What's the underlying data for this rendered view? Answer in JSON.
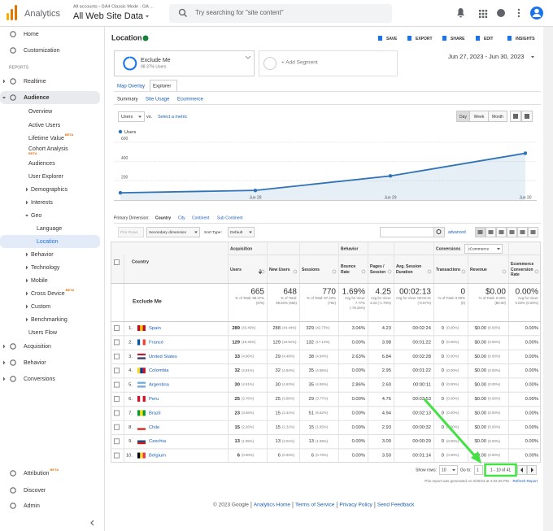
{
  "header": {
    "product": "Analytics",
    "breadcrumb": "All accounts › GA4 Classic Mode - GA ...",
    "property": "All Web Site Data",
    "search_placeholder": "Try searching for \"site content\""
  },
  "sidebar": {
    "top": [
      "Home",
      "Customization"
    ],
    "section": "REPORTS",
    "nav": [
      {
        "label": "Realtime"
      },
      {
        "label": "Audience"
      },
      {
        "label": "Overview"
      },
      {
        "label": "Active Users"
      },
      {
        "label": "Lifetime Value",
        "badge": "BETA"
      },
      {
        "label": "Cohort Analysis",
        "badge": "BETA"
      },
      {
        "label": "Audiences"
      },
      {
        "label": "User Explorer"
      },
      {
        "label": "Demographics"
      },
      {
        "label": "Interests"
      },
      {
        "label": "Geo"
      },
      {
        "label": "Language"
      },
      {
        "label": "Location"
      },
      {
        "label": "Behavior"
      },
      {
        "label": "Technology"
      },
      {
        "label": "Mobile"
      },
      {
        "label": "Cross Device",
        "badge": "BETA"
      },
      {
        "label": "Custom"
      },
      {
        "label": "Benchmarking"
      },
      {
        "label": "Users Flow"
      },
      {
        "label": "Acquisition"
      },
      {
        "label": "Behavior"
      },
      {
        "label": "Conversions"
      }
    ],
    "bottom": [
      {
        "label": "Attribution",
        "badge": "BETA"
      },
      {
        "label": "Discover"
      },
      {
        "label": "Admin"
      }
    ]
  },
  "report": {
    "title": "Location",
    "actions": [
      "SAVE",
      "EXPORT",
      "SHARE",
      "EDIT",
      "INSIGHTS"
    ],
    "segment": {
      "name": "Exclude Me",
      "share": "98.37% Users"
    },
    "add_segment": "+ Add Segment",
    "date_range": "Jun 27, 2023 - Jun 30, 2023",
    "tabs": [
      "Map Overlay",
      "Explorer"
    ],
    "subtabs": [
      "Summary",
      "Site Usage",
      "Ecommerce"
    ],
    "metric_select": "Users",
    "vs": "vs.",
    "select_metric": "Select a metric",
    "granularity": [
      "Day",
      "Week",
      "Month"
    ]
  },
  "chart_data": {
    "type": "line",
    "categories": [
      null,
      "Jun 28",
      "Jun 29",
      "Jun 30"
    ],
    "series": [
      {
        "name": "Users",
        "color": "#2f72b5",
        "values": [
          75,
          100,
          250,
          485
        ]
      }
    ],
    "ylim": [
      0,
      700
    ],
    "yticks": [
      200,
      400,
      600
    ],
    "grid": true
  },
  "dimensions": {
    "label": "Primary Dimension:",
    "options": [
      "Country",
      "City",
      "Continent",
      "Sub Continent"
    ]
  },
  "table_controls": {
    "plot_rows": "Plot Rows",
    "secondary": "Secondary dimension",
    "sort_label": "Sort Type:",
    "sort": "Default",
    "advanced": "advanced"
  },
  "table": {
    "groups": [
      "Acquisition",
      "Behavior",
      "Conversions"
    ],
    "conversion_select": "eCommerce",
    "columns": [
      "Country",
      "Users",
      "New Users",
      "Sessions",
      "Bounce Rate",
      "Pages / Session",
      "Avg. Session Duration",
      "Transactions",
      "Revenue",
      "Ecommerce Conversion Rate"
    ],
    "totals": {
      "label": "Exclude Me",
      "metrics": [
        {
          "value": "665",
          "note": "% of Total: 98.37% (676)"
        },
        {
          "value": "648",
          "note": "% of Total: 98.93% (655)"
        },
        {
          "value": "770",
          "note": "% of Total: 97.22% (792)"
        },
        {
          "value": "1.69%",
          "note": "Avg for View: 7.77% (-78.25%)"
        },
        {
          "value": "4.25",
          "note": "Avg for View: 4.33 (-1.79%)"
        },
        {
          "value": "00:02:13",
          "note": "Avg for View: 00:02:21 (-5.57%)"
        },
        {
          "value": "0",
          "note": "% of Total: 0.00% (0)"
        },
        {
          "value": "$0.00",
          "note": "% of Total: 0.00% ($0.00)"
        },
        {
          "value": "0.00%",
          "note": "Avg for View: 0.00% (0.00%)"
        }
      ]
    },
    "rows": [
      [
        "1.",
        "Spain",
        "289",
        "(43.46%)",
        "288",
        "(44.44%)",
        "329",
        "(42.73%)",
        "3.04%",
        "4.23",
        "00:02:24",
        "0",
        "(0.00%)",
        "$0.00",
        "(0.00%)",
        "0.00%"
      ],
      [
        "2.",
        "France",
        "129",
        "(19.40%)",
        "129",
        "(19.91%)",
        "132",
        "(17.14%)",
        "0.00%",
        "3.98",
        "00:01:22",
        "0",
        "(0.00%)",
        "$0.00",
        "(0.00%)",
        "0.00%"
      ],
      [
        "3.",
        "United States",
        "33",
        "(4.96%)",
        "29",
        "(4.48%)",
        "38",
        "(4.94%)",
        "2.63%",
        "6.84",
        "00:02:28",
        "0",
        "(0.00%)",
        "$0.00",
        "(0.00%)",
        "0.00%"
      ],
      [
        "4.",
        "Colombia",
        "32",
        "(4.81%)",
        "32",
        "(4.94%)",
        "35",
        "(4.55%)",
        "0.00%",
        "2.95",
        "00:01:22",
        "0",
        "(0.00%)",
        "$0.00",
        "(0.00%)",
        "0.00%"
      ],
      [
        "5.",
        "Argentina",
        "30",
        "(4.51%)",
        "30",
        "(4.63%)",
        "35",
        "(4.55%)",
        "2.86%",
        "2.60",
        "00:00:11",
        "0",
        "(0.00%)",
        "$0.00",
        "(0.00%)",
        "0.00%"
      ],
      [
        "6.",
        "Peru",
        "25",
        "(3.76%)",
        "25",
        "(3.86%)",
        "29",
        "(3.77%)",
        "0.00%",
        "4.76",
        "00:03:53",
        "0",
        "(0.00%)",
        "$0.00",
        "(0.00%)",
        "0.00%"
      ],
      [
        "7.",
        "Brazil",
        "23",
        "(3.46%)",
        "15",
        "(2.31%)",
        "51",
        "(6.62%)",
        "0.00%",
        "4.94",
        "00:02:13",
        "0",
        "(0.00%)",
        "$0.00",
        "(0.00%)",
        "0.00%"
      ],
      [
        "8.",
        "Chile",
        "15",
        "(2.26%)",
        "15",
        "(2.31%)",
        "15",
        "(1.95%)",
        "0.00%",
        "2.93",
        "00:00:32",
        "0",
        "(0.00%)",
        "$0.00",
        "(0.00%)",
        "0.00%"
      ],
      [
        "9.",
        "Czechia",
        "13",
        "(1.95%)",
        "13",
        "(2.01%)",
        "13",
        "(1.69%)",
        "0.00%",
        "3.00",
        "00:00:29",
        "0",
        "(0.00%)",
        "$0.00",
        "(0.00%)",
        "0.00%"
      ],
      [
        "10.",
        "Belgium",
        "6",
        "(0.90%)",
        "6",
        "(0.93%)",
        "6",
        "(0.78%)",
        "0.00%",
        "3.50",
        "00:01:14",
        "0",
        "(0.00%)",
        "$0.00",
        "(0.00%)",
        "0.00%"
      ]
    ]
  },
  "pagination": {
    "show_rows_label": "Show rows:",
    "show_rows": "10",
    "goto_label": "Go to:",
    "goto": "1",
    "range": "1 - 10 of 41",
    "generated": "This report was generated on 6/30/23 at 2:02:25 PM -",
    "refresh": "Refresh Report"
  },
  "footer": [
    "© 2023 Google",
    "Analytics Home",
    "Terms of Service",
    "Privacy Policy",
    "Send Feedback"
  ]
}
